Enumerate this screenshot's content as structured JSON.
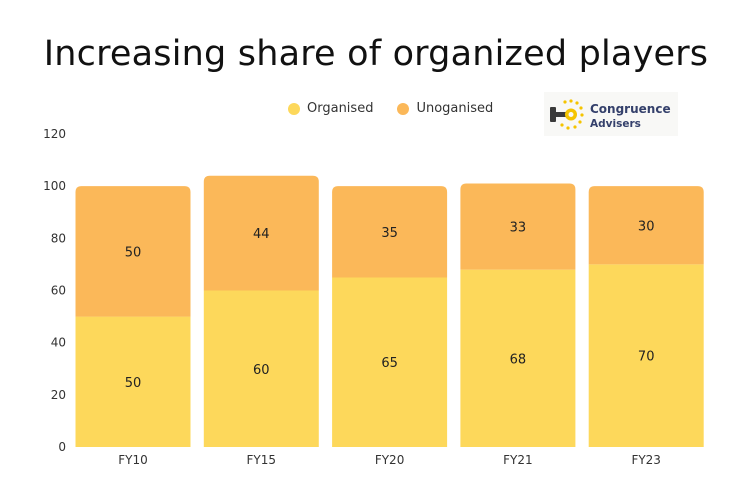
{
  "title": "Increasing share of organized players",
  "legend": [
    {
      "label": "Organised",
      "color": "#fdd85b"
    },
    {
      "label": "Unoganised",
      "color": "#fbb859"
    }
  ],
  "logo": {
    "line1": "Congruence",
    "line2": "Advisers"
  },
  "chart_data": {
    "type": "bar",
    "stacked": true,
    "categories": [
      "FY10",
      "FY15",
      "FY20",
      "FY21",
      "FY23"
    ],
    "series": [
      {
        "name": "Organised",
        "values": [
          50,
          60,
          65,
          68,
          70
        ],
        "color": "#fdd85b"
      },
      {
        "name": "Unoganised",
        "values": [
          50,
          44,
          35,
          33,
          30
        ],
        "color": "#fbb859"
      }
    ],
    "ylim": [
      0,
      120
    ],
    "yticks": [
      0,
      20,
      40,
      60,
      80,
      100,
      120
    ],
    "grid": false,
    "legend_position": "top"
  }
}
